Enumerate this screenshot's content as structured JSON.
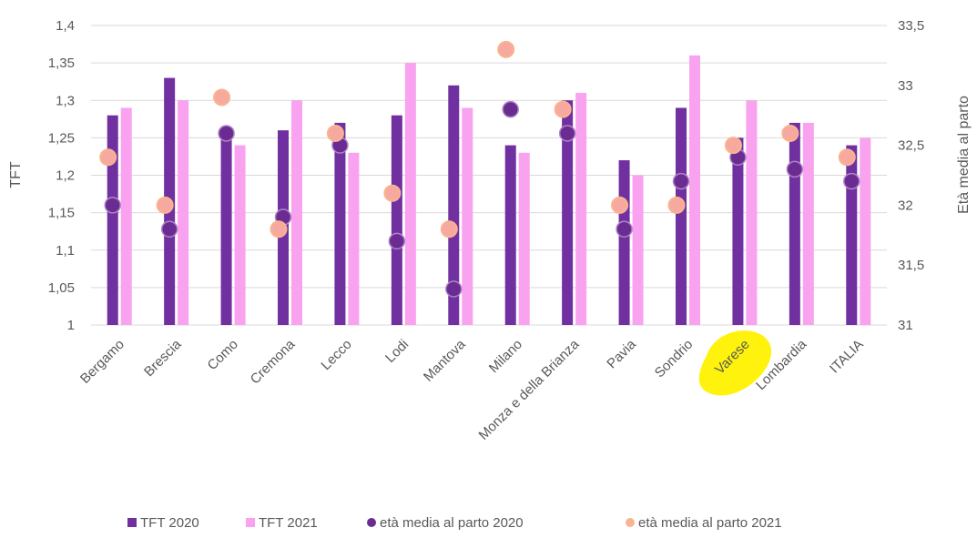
{
  "chart_data": {
    "type": "bar",
    "title": "",
    "xlabel": "",
    "ylabel": "TFT",
    "y2label": "Età media al parto",
    "ylim": [
      1,
      1.4
    ],
    "y2lim": [
      31,
      33.5
    ],
    "yticks": [
      "1",
      "1,05",
      "1,1",
      "1,15",
      "1,2",
      "1,25",
      "1,3",
      "1,35",
      "1,4"
    ],
    "y2ticks": [
      "31",
      "31,5",
      "32",
      "32,5",
      "33",
      "33,5"
    ],
    "grid": true,
    "legend_position": "bottom",
    "categories": [
      "Bergamo",
      "Brescia",
      "Como",
      "Cremona",
      "Lecco",
      "Lodi",
      "Mantova",
      "Milano",
      "Monza e della Brianza",
      "Pavia",
      "Sondrio",
      "Varese",
      "Lombardia",
      "ITALIA"
    ],
    "highlighted_category": "Varese",
    "series": [
      {
        "name": "TFT 2020",
        "kind": "bar",
        "axis": "left",
        "color": "#7030a0",
        "values": [
          1.28,
          1.33,
          1.25,
          1.26,
          1.27,
          1.28,
          1.32,
          1.24,
          1.3,
          1.22,
          1.29,
          1.25,
          1.27,
          1.24
        ]
      },
      {
        "name": "TFT 2021",
        "kind": "bar",
        "axis": "left",
        "color": "#f9a3f0",
        "values": [
          1.29,
          1.3,
          1.24,
          1.3,
          1.23,
          1.35,
          1.29,
          1.23,
          1.31,
          1.2,
          1.36,
          1.3,
          1.27,
          1.25
        ]
      },
      {
        "name": "età media al parto 2020",
        "kind": "scatter",
        "axis": "right",
        "color": "#6a2c91",
        "values": [
          32.0,
          31.8,
          32.6,
          31.9,
          32.5,
          31.7,
          31.3,
          32.8,
          32.6,
          31.8,
          32.2,
          32.4,
          32.3,
          32.2
        ]
      },
      {
        "name": "età media al parto 2021",
        "kind": "scatter",
        "axis": "right",
        "color": "#f8b48e",
        "values": [
          32.4,
          32.0,
          32.9,
          31.8,
          32.6,
          32.1,
          31.8,
          33.3,
          32.8,
          32.0,
          32.0,
          32.5,
          32.6,
          32.4
        ]
      }
    ]
  }
}
